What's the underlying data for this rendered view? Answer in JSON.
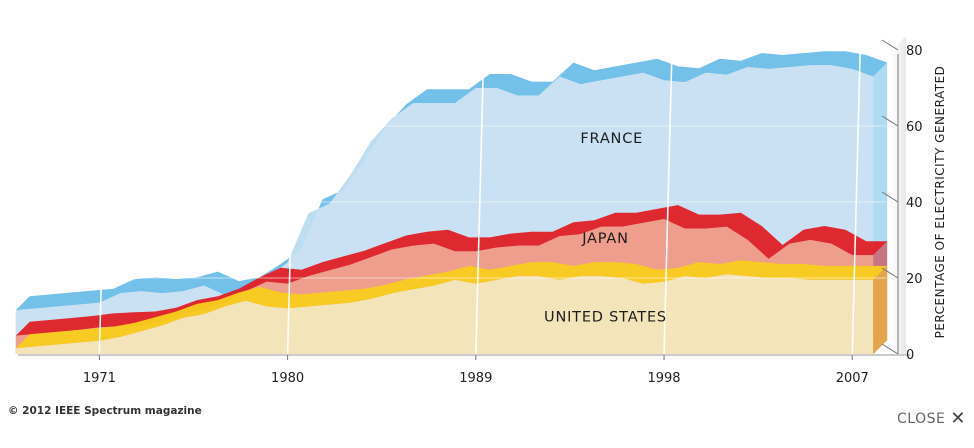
{
  "chart_data": {
    "type": "area",
    "ylabel": "PERCENTAGE OF ELECTRICITY GENERATED",
    "ylim": [
      0,
      80
    ],
    "yticks": [
      0,
      20,
      40,
      60,
      80
    ],
    "xticks": [
      1971,
      1980,
      1989,
      1998,
      2007
    ],
    "xlim": [
      1967.3,
      2008.9
    ],
    "grid": true,
    "x": [
      1967,
      1968,
      1969,
      1970,
      1971,
      1972,
      1973,
      1974,
      1975,
      1976,
      1977,
      1978,
      1979,
      1980,
      1981,
      1982,
      1983,
      1984,
      1985,
      1986,
      1987,
      1988,
      1989,
      1990,
      1991,
      1992,
      1993,
      1994,
      1995,
      1996,
      1997,
      1998,
      1999,
      2000,
      2001,
      2002,
      2003,
      2004,
      2005,
      2006,
      2007,
      2008
    ],
    "series": [
      {
        "name": "FRANCE",
        "color": "#6cbde8",
        "fill": "#c5dff1",
        "values": [
          11.5,
          12,
          12.5,
          13,
          13.5,
          16,
          16.5,
          16,
          16.5,
          18,
          15.5,
          16.5,
          20,
          24,
          37,
          39.5,
          47,
          56,
          62,
          66,
          66,
          66,
          70,
          70,
          68,
          68,
          73,
          71,
          72,
          73,
          74,
          72,
          71.5,
          74,
          73.5,
          75.5,
          75,
          75.5,
          76,
          76,
          75,
          73
        ]
      },
      {
        "name": "JAPAN",
        "color": "#e01f26",
        "fill": "#f29884",
        "values": [
          4.8,
          5.3,
          5.8,
          6.3,
          7,
          7.3,
          7.5,
          8.5,
          10.5,
          11.5,
          13.5,
          16.5,
          19,
          18.5,
          20.5,
          22,
          23.5,
          25.5,
          27.5,
          28.5,
          29,
          27,
          27,
          28,
          28.5,
          28.5,
          31,
          31.5,
          33.5,
          33.5,
          34.5,
          35.5,
          33,
          33,
          33.5,
          30,
          25,
          29,
          30,
          29,
          26,
          26
        ]
      },
      {
        "name": "UNITED STATES",
        "color": "#f7cd1d",
        "fill": "#f3e9bc",
        "values": [
          1.5,
          2,
          2.5,
          3,
          3.5,
          4.5,
          6,
          7.5,
          9.5,
          10.5,
          12.5,
          14,
          12.5,
          12,
          12.5,
          13,
          13.5,
          14.5,
          16,
          17,
          18,
          19.5,
          18.5,
          19.5,
          20.5,
          20.5,
          19.5,
          20.5,
          20.5,
          20,
          18.5,
          19,
          20.5,
          20,
          21,
          20.5,
          20,
          20,
          19.5,
          19.5,
          19.5,
          19.5
        ]
      }
    ]
  },
  "footer": {
    "copyright": "© 2012 IEEE Spectrum magazine",
    "close_label": "CLOSE"
  }
}
